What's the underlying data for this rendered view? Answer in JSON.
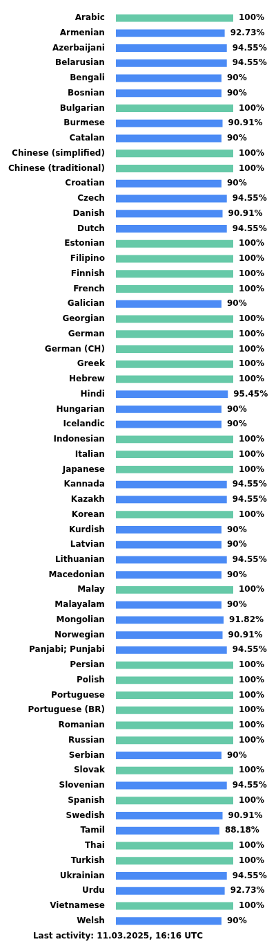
{
  "chart_data": {
    "type": "bar",
    "orientation": "horizontal",
    "footer": "Last activity: 11.03.2025, 16:16 UTC",
    "categories": [
      "Arabic",
      "Armenian",
      "Azerbaijani",
      "Belarusian",
      "Bengali",
      "Bosnian",
      "Bulgarian",
      "Burmese",
      "Catalan",
      "Chinese (simplified)",
      "Chinese (traditional)",
      "Croatian",
      "Czech",
      "Danish",
      "Dutch",
      "Estonian",
      "Filipino",
      "Finnish",
      "French",
      "Galician",
      "Georgian",
      "German",
      "German (CH)",
      "Greek",
      "Hebrew",
      "Hindi",
      "Hungarian",
      "Icelandic",
      "Indonesian",
      "Italian",
      "Japanese",
      "Kannada",
      "Kazakh",
      "Korean",
      "Kurdish",
      "Latvian",
      "Lithuanian",
      "Macedonian",
      "Malay",
      "Malayalam",
      "Mongolian",
      "Norwegian",
      "Panjabi; Punjabi",
      "Persian",
      "Polish",
      "Portuguese",
      "Portuguese (BR)",
      "Romanian",
      "Russian",
      "Serbian",
      "Slovak",
      "Slovenian",
      "Spanish",
      "Swedish",
      "Tamil",
      "Thai",
      "Turkish",
      "Ukrainian",
      "Urdu",
      "Vietnamese",
      "Welsh"
    ],
    "values": [
      100,
      92.73,
      94.55,
      94.55,
      90,
      90,
      100,
      90.91,
      90,
      100,
      100,
      90,
      94.55,
      90.91,
      94.55,
      100,
      100,
      100,
      100,
      90,
      100,
      100,
      100,
      100,
      100,
      95.45,
      90,
      90,
      100,
      100,
      100,
      94.55,
      94.55,
      100,
      90,
      90,
      94.55,
      90,
      100,
      90,
      91.82,
      90.91,
      94.55,
      100,
      100,
      100,
      100,
      100,
      100,
      90,
      100,
      94.55,
      100,
      90.91,
      88.18,
      100,
      100,
      94.55,
      92.73,
      100,
      90
    ],
    "value_labels": [
      "100%",
      "92.73%",
      "94.55%",
      "94.55%",
      "90%",
      "90%",
      "100%",
      "90.91%",
      "90%",
      "100%",
      "100%",
      "90%",
      "94.55%",
      "90.91%",
      "94.55%",
      "100%",
      "100%",
      "100%",
      "100%",
      "90%",
      "100%",
      "100%",
      "100%",
      "100%",
      "100%",
      "95.45%",
      "90%",
      "90%",
      "100%",
      "100%",
      "100%",
      "94.55%",
      "94.55%",
      "100%",
      "90%",
      "90%",
      "94.55%",
      "90%",
      "100%",
      "90%",
      "91.82%",
      "90.91%",
      "94.55%",
      "100%",
      "100%",
      "100%",
      "100%",
      "100%",
      "100%",
      "90%",
      "100%",
      "94.55%",
      "100%",
      "90.91%",
      "88.18%",
      "100%",
      "100%",
      "94.55%",
      "92.73%",
      "100%",
      "90%"
    ],
    "colors": [
      "#66c9a8",
      "#4b8bf5",
      "#4b8bf5",
      "#4b8bf5",
      "#4b8bf5",
      "#4b8bf5",
      "#66c9a8",
      "#4b8bf5",
      "#4b8bf5",
      "#66c9a8",
      "#66c9a8",
      "#4b8bf5",
      "#4b8bf5",
      "#4b8bf5",
      "#4b8bf5",
      "#66c9a8",
      "#66c9a8",
      "#66c9a8",
      "#66c9a8",
      "#4b8bf5",
      "#66c9a8",
      "#66c9a8",
      "#66c9a8",
      "#66c9a8",
      "#66c9a8",
      "#4b8bf5",
      "#4b8bf5",
      "#4b8bf5",
      "#66c9a8",
      "#66c9a8",
      "#66c9a8",
      "#4b8bf5",
      "#4b8bf5",
      "#66c9a8",
      "#4b8bf5",
      "#4b8bf5",
      "#4b8bf5",
      "#4b8bf5",
      "#66c9a8",
      "#4b8bf5",
      "#4b8bf5",
      "#4b8bf5",
      "#4b8bf5",
      "#66c9a8",
      "#66c9a8",
      "#66c9a8",
      "#66c9a8",
      "#66c9a8",
      "#66c9a8",
      "#4b8bf5",
      "#66c9a8",
      "#4b8bf5",
      "#66c9a8",
      "#4b8bf5",
      "#4b8bf5",
      "#66c9a8",
      "#66c9a8",
      "#4b8bf5",
      "#4b8bf5",
      "#66c9a8",
      "#4b8bf5"
    ],
    "xlim": [
      0,
      100
    ],
    "data_labels": true,
    "tick_labels": "y",
    "grid": false
  }
}
